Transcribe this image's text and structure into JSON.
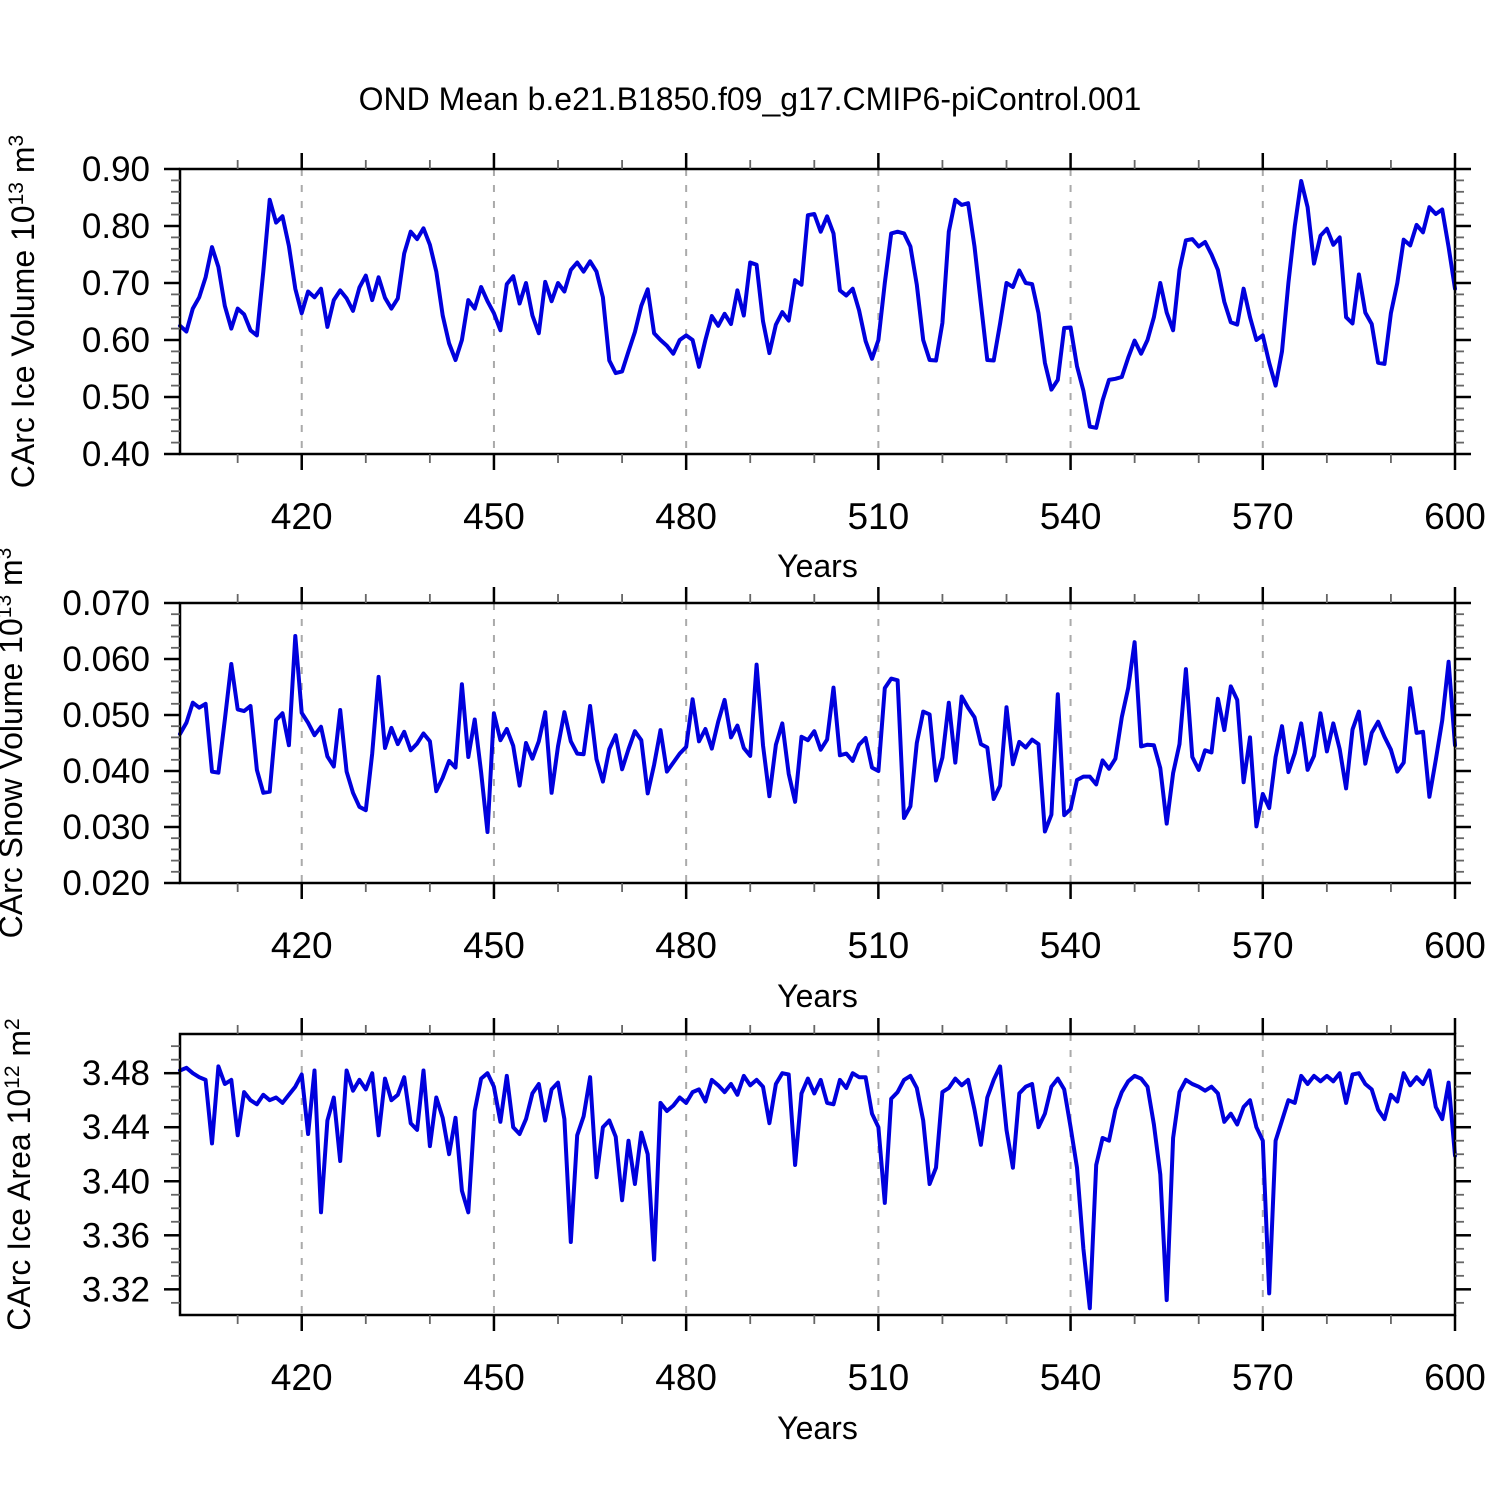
{
  "title": "OND Mean b.e21.B1850.f09_g17.CMIP6-piControl.001",
  "xlabel": "Years",
  "style": {
    "line_color": "#0000dd",
    "axis_color": "#000000",
    "grid_color": "#aaaaaa",
    "minor_tick_color": "#666666",
    "background": "#ffffff"
  },
  "chart_data": [
    {
      "id": "ice-volume",
      "type": "line",
      "ylabel_text": "CArc Ice Volume 10^13 m^3",
      "ylabel_parts": [
        {
          "t": "CArc Ice Volume 10"
        },
        {
          "t": "13",
          "sup": true
        },
        {
          "t": " m"
        },
        {
          "t": "3",
          "sup": true
        }
      ],
      "xlabel": "Years",
      "xlim": [
        401,
        600
      ],
      "ylim": [
        0.4,
        0.9
      ],
      "xtick_values": [
        420,
        450,
        480,
        510,
        540,
        570,
        600
      ],
      "xtick_labels": [
        "420",
        "450",
        "480",
        "510",
        "540",
        "570",
        "600"
      ],
      "xtick_minor_step": 10,
      "ytick_values": [
        0.4,
        0.5,
        0.6,
        0.7,
        0.8,
        0.9
      ],
      "ytick_labels": [
        "0.40",
        "0.50",
        "0.60",
        "0.70",
        "0.80",
        "0.90"
      ],
      "ytick_minor_step": 0.02,
      "grid_x": [
        420,
        450,
        480,
        510,
        540,
        570
      ],
      "x_start": 401,
      "x_step": 1,
      "values": [
        0.625,
        0.615,
        0.655,
        0.675,
        0.71,
        0.763,
        0.728,
        0.66,
        0.62,
        0.655,
        0.645,
        0.617,
        0.608,
        0.72,
        0.846,
        0.806,
        0.817,
        0.765,
        0.69,
        0.647,
        0.685,
        0.675,
        0.69,
        0.623,
        0.67,
        0.687,
        0.673,
        0.651,
        0.692,
        0.713,
        0.67,
        0.71,
        0.674,
        0.655,
        0.673,
        0.752,
        0.79,
        0.777,
        0.796,
        0.767,
        0.72,
        0.643,
        0.594,
        0.565,
        0.6,
        0.67,
        0.655,
        0.693,
        0.668,
        0.647,
        0.617,
        0.698,
        0.712,
        0.664,
        0.7,
        0.643,
        0.612,
        0.702,
        0.668,
        0.7,
        0.685,
        0.723,
        0.736,
        0.72,
        0.738,
        0.72,
        0.675,
        0.564,
        0.542,
        0.545,
        0.58,
        0.614,
        0.66,
        0.689,
        0.612,
        0.6,
        0.59,
        0.576,
        0.6,
        0.608,
        0.6,
        0.553,
        0.6,
        0.642,
        0.625,
        0.646,
        0.628,
        0.687,
        0.643,
        0.736,
        0.732,
        0.633,
        0.577,
        0.627,
        0.649,
        0.634,
        0.705,
        0.697,
        0.819,
        0.821,
        0.79,
        0.817,
        0.787,
        0.687,
        0.678,
        0.69,
        0.652,
        0.598,
        0.567,
        0.6,
        0.7,
        0.787,
        0.79,
        0.787,
        0.764,
        0.697,
        0.6,
        0.565,
        0.564,
        0.63,
        0.79,
        0.846,
        0.837,
        0.84,
        0.764,
        0.664,
        0.565,
        0.564,
        0.629,
        0.7,
        0.693,
        0.722,
        0.7,
        0.698,
        0.647,
        0.56,
        0.513,
        0.53,
        0.621,
        0.622,
        0.554,
        0.511,
        0.448,
        0.446,
        0.494,
        0.53,
        0.532,
        0.535,
        0.569,
        0.599,
        0.576,
        0.6,
        0.64,
        0.7,
        0.648,
        0.617,
        0.723,
        0.775,
        0.777,
        0.764,
        0.772,
        0.75,
        0.723,
        0.667,
        0.631,
        0.627,
        0.69,
        0.64,
        0.6,
        0.608,
        0.56,
        0.52,
        0.58,
        0.7,
        0.8,
        0.879,
        0.833,
        0.734,
        0.783,
        0.795,
        0.767,
        0.78,
        0.64,
        0.629,
        0.715,
        0.648,
        0.628,
        0.56,
        0.558,
        0.647,
        0.7,
        0.776,
        0.766,
        0.802,
        0.789,
        0.833,
        0.821,
        0.829,
        0.763,
        0.69
      ]
    },
    {
      "id": "snow-volume",
      "type": "line",
      "ylabel_text": "CArc Snow Volume 10^13 m^3",
      "ylabel_parts": [
        {
          "t": "CArc Snow Volume 10"
        },
        {
          "t": "13",
          "sup": true
        },
        {
          "t": " m"
        },
        {
          "t": "3",
          "sup": true
        }
      ],
      "xlabel": "Years",
      "xlim": [
        401,
        600
      ],
      "ylim": [
        0.02,
        0.07
      ],
      "xtick_values": [
        420,
        450,
        480,
        510,
        540,
        570,
        600
      ],
      "xtick_labels": [
        "420",
        "450",
        "480",
        "510",
        "540",
        "570",
        "600"
      ],
      "xtick_minor_step": 10,
      "ytick_values": [
        0.02,
        0.03,
        0.04,
        0.05,
        0.06,
        0.07
      ],
      "ytick_labels": [
        "0.020",
        "0.030",
        "0.040",
        "0.050",
        "0.060",
        "0.070"
      ],
      "ytick_minor_step": 0.002,
      "grid_x": [
        420,
        450,
        480,
        510,
        540,
        570
      ],
      "x_start": 401,
      "x_step": 1,
      "values": [
        0.0466,
        0.0486,
        0.0522,
        0.0513,
        0.052,
        0.0399,
        0.0397,
        0.0491,
        0.0591,
        0.051,
        0.0507,
        0.0516,
        0.0402,
        0.0361,
        0.0363,
        0.0491,
        0.0503,
        0.0446,
        0.0641,
        0.0504,
        0.0486,
        0.0464,
        0.0479,
        0.0426,
        0.0408,
        0.0509,
        0.0399,
        0.0361,
        0.0336,
        0.033,
        0.0431,
        0.0568,
        0.0441,
        0.0477,
        0.0448,
        0.047,
        0.0437,
        0.0449,
        0.0467,
        0.0453,
        0.0364,
        0.0388,
        0.0418,
        0.0406,
        0.0555,
        0.0425,
        0.0492,
        0.0398,
        0.0291,
        0.0503,
        0.0455,
        0.0475,
        0.0445,
        0.0374,
        0.045,
        0.0422,
        0.0453,
        0.0505,
        0.0361,
        0.0444,
        0.0505,
        0.0453,
        0.0431,
        0.043,
        0.0516,
        0.0421,
        0.0381,
        0.0439,
        0.0464,
        0.0403,
        0.0439,
        0.0471,
        0.0455,
        0.036,
        0.0411,
        0.0473,
        0.0399,
        0.0415,
        0.0431,
        0.0443,
        0.0528,
        0.0453,
        0.0475,
        0.044,
        0.0488,
        0.0527,
        0.046,
        0.0481,
        0.0441,
        0.0427,
        0.059,
        0.0446,
        0.0355,
        0.0447,
        0.0485,
        0.0395,
        0.0345,
        0.0461,
        0.0455,
        0.0471,
        0.0438,
        0.0456,
        0.0549,
        0.0428,
        0.0431,
        0.0418,
        0.0447,
        0.0459,
        0.0406,
        0.04,
        0.0548,
        0.0565,
        0.0562,
        0.0316,
        0.0337,
        0.045,
        0.0506,
        0.0501,
        0.0383,
        0.0424,
        0.0522,
        0.0415,
        0.0533,
        0.0513,
        0.0496,
        0.0448,
        0.0442,
        0.035,
        0.0374,
        0.0514,
        0.0412,
        0.0452,
        0.0442,
        0.0456,
        0.0448,
        0.0292,
        0.0322,
        0.0537,
        0.0321,
        0.0332,
        0.0384,
        0.039,
        0.039,
        0.0376,
        0.0419,
        0.0404,
        0.0422,
        0.0496,
        0.0548,
        0.063,
        0.0444,
        0.0447,
        0.0446,
        0.0405,
        0.0306,
        0.0396,
        0.0448,
        0.0582,
        0.0425,
        0.0402,
        0.0437,
        0.0433,
        0.0529,
        0.0473,
        0.0551,
        0.0527,
        0.038,
        0.046,
        0.0301,
        0.0359,
        0.0334,
        0.0425,
        0.048,
        0.0398,
        0.0432,
        0.0485,
        0.0402,
        0.0427,
        0.0503,
        0.0435,
        0.0485,
        0.0439,
        0.0369,
        0.0474,
        0.0506,
        0.0413,
        0.0468,
        0.0488,
        0.0461,
        0.0438,
        0.0399,
        0.0415,
        0.0548,
        0.0468,
        0.047,
        0.0354,
        0.042,
        0.049,
        0.0595,
        0.0446
      ]
    },
    {
      "id": "ice-area",
      "type": "line",
      "ylabel_text": "CArc Ice Area 10^12 m^2",
      "ylabel_parts": [
        {
          "t": "CArc Ice Area 10"
        },
        {
          "t": "12",
          "sup": true
        },
        {
          "t": " m"
        },
        {
          "t": "2",
          "sup": true
        }
      ],
      "xlabel": "Years",
      "xlim": [
        401,
        600
      ],
      "ylim": [
        3.301,
        3.509
      ],
      "xtick_values": [
        420,
        450,
        480,
        510,
        540,
        570,
        600
      ],
      "xtick_labels": [
        "420",
        "450",
        "480",
        "510",
        "540",
        "570",
        "600"
      ],
      "xtick_minor_step": 10,
      "ytick_values": [
        3.32,
        3.36,
        3.4,
        3.44,
        3.48
      ],
      "ytick_labels": [
        "3.32",
        "3.36",
        "3.40",
        "3.44",
        "3.48"
      ],
      "ytick_minor_step": 0.01,
      "grid_x": [
        420,
        450,
        480,
        510,
        540,
        570
      ],
      "x_start": 401,
      "x_step": 1,
      "values": [
        3.482,
        3.484,
        3.48,
        3.477,
        3.475,
        3.428,
        3.485,
        3.472,
        3.475,
        3.434,
        3.466,
        3.46,
        3.457,
        3.464,
        3.46,
        3.462,
        3.458,
        3.464,
        3.47,
        3.479,
        3.435,
        3.482,
        3.377,
        3.445,
        3.462,
        3.415,
        3.482,
        3.467,
        3.475,
        3.468,
        3.48,
        3.434,
        3.476,
        3.46,
        3.464,
        3.477,
        3.443,
        3.438,
        3.482,
        3.426,
        3.462,
        3.447,
        3.42,
        3.447,
        3.393,
        3.377,
        3.452,
        3.476,
        3.48,
        3.47,
        3.444,
        3.478,
        3.44,
        3.435,
        3.446,
        3.465,
        3.472,
        3.445,
        3.468,
        3.473,
        3.446,
        3.355,
        3.434,
        3.448,
        3.477,
        3.403,
        3.44,
        3.445,
        3.433,
        3.386,
        3.43,
        3.398,
        3.436,
        3.42,
        3.342,
        3.458,
        3.452,
        3.456,
        3.462,
        3.458,
        3.466,
        3.468,
        3.459,
        3.475,
        3.471,
        3.466,
        3.472,
        3.464,
        3.478,
        3.471,
        3.475,
        3.47,
        3.443,
        3.472,
        3.48,
        3.479,
        3.412,
        3.465,
        3.476,
        3.465,
        3.475,
        3.458,
        3.457,
        3.475,
        3.469,
        3.48,
        3.477,
        3.477,
        3.45,
        3.44,
        3.384,
        3.461,
        3.466,
        3.475,
        3.478,
        3.469,
        3.445,
        3.398,
        3.41,
        3.466,
        3.469,
        3.476,
        3.471,
        3.475,
        3.453,
        3.427,
        3.462,
        3.475,
        3.485,
        3.438,
        3.41,
        3.465,
        3.47,
        3.472,
        3.44,
        3.45,
        3.47,
        3.476,
        3.468,
        3.44,
        3.41,
        3.35,
        3.306,
        3.412,
        3.432,
        3.43,
        3.453,
        3.466,
        3.474,
        3.478,
        3.476,
        3.47,
        3.442,
        3.405,
        3.312,
        3.432,
        3.466,
        3.475,
        3.472,
        3.47,
        3.467,
        3.47,
        3.465,
        3.444,
        3.45,
        3.442,
        3.455,
        3.46,
        3.44,
        3.43,
        3.317,
        3.43,
        3.445,
        3.46,
        3.458,
        3.478,
        3.472,
        3.478,
        3.474,
        3.478,
        3.474,
        3.48,
        3.458,
        3.479,
        3.48,
        3.472,
        3.468,
        3.453,
        3.446,
        3.464,
        3.459,
        3.48,
        3.471,
        3.477,
        3.472,
        3.482,
        3.455,
        3.446,
        3.473,
        3.419
      ]
    }
  ]
}
